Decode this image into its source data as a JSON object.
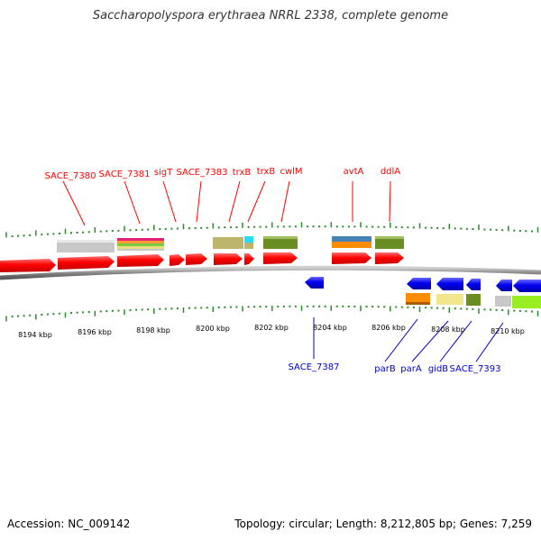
{
  "title": "Saccharopolyspora erythraea NRRL 2338, complete genome",
  "accession_text": "Accession: NC_009142",
  "topology_text": "Topology: circular; Length: 8,212,805 bp; Genes: 7,259",
  "colors": {
    "forward_gene": "#ff0000",
    "reverse_gene": "#0000ee",
    "backbone": "#8a8a8a",
    "tick": "#2d8a2d",
    "forward_label": "#ff0000",
    "reverse_label": "#0000cc"
  },
  "axis": {
    "tick_labels": [
      "8194 kbp",
      "8196 kbp",
      "8198 kbp",
      "8200 kbp",
      "8202 kbp",
      "8204 kbp",
      "8206 kbp",
      "8208 kbp",
      "8210 kbp"
    ]
  },
  "forward_labels": [
    "SACE_7380",
    "SACE_7381",
    "sigT",
    "SACE_7383",
    "trxB",
    "trxB",
    "cwlM",
    "avtA",
    "ddlA"
  ],
  "reverse_labels": [
    "SACE_7387",
    "parB",
    "parA",
    "gidB",
    "SACE_7393"
  ]
}
